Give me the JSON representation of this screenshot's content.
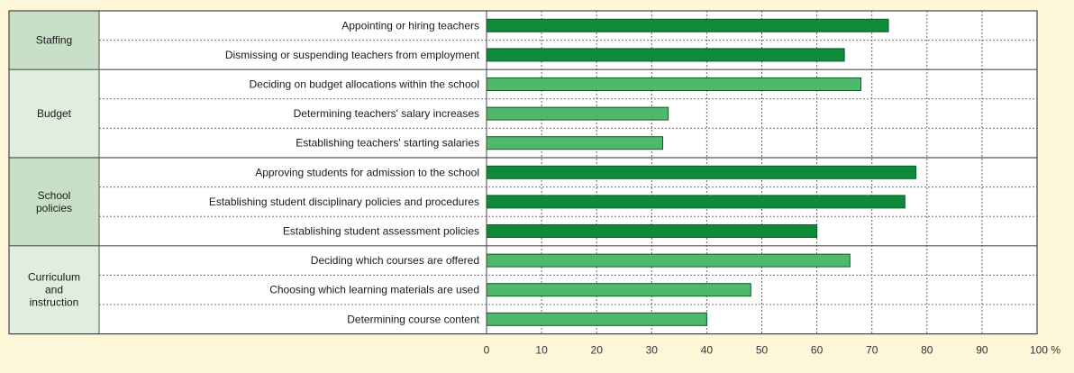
{
  "chart_data": {
    "type": "bar",
    "orientation": "horizontal",
    "unit": "%",
    "xlim": [
      0,
      100
    ],
    "x_ticks": [
      "0",
      "10",
      "20",
      "30",
      "40",
      "50",
      "60",
      "70",
      "80",
      "90",
      "100 %"
    ],
    "grid": true,
    "groups": [
      {
        "label": "Staffing",
        "color": "#c7e0c7"
      },
      {
        "label": "Budget",
        "color": "#dfeedf"
      },
      {
        "label": "School policies",
        "color": "#c7e0c7"
      },
      {
        "label": "Curriculum and instruction",
        "color": "#dfeedf"
      }
    ],
    "items": [
      {
        "group": 0,
        "label": "Appointing or hiring teachers",
        "value": 73,
        "shade": "dark"
      },
      {
        "group": 0,
        "label": "Dismissing or suspending teachers from employment",
        "value": 65,
        "shade": "dark"
      },
      {
        "group": 1,
        "label": "Deciding on budget allocations within the school",
        "value": 68,
        "shade": "light"
      },
      {
        "group": 1,
        "label": "Determining teachers' salary increases",
        "value": 33,
        "shade": "light"
      },
      {
        "group": 1,
        "label": "Establishing teachers' starting salaries",
        "value": 32,
        "shade": "light"
      },
      {
        "group": 2,
        "label": "Approving students for admission to the school",
        "value": 78,
        "shade": "dark"
      },
      {
        "group": 2,
        "label": "Establishing student disciplinary policies and procedures",
        "value": 76,
        "shade": "dark"
      },
      {
        "group": 2,
        "label": "Establishing student assessment policies",
        "value": 60,
        "shade": "dark"
      },
      {
        "group": 3,
        "label": "Deciding which courses are offered",
        "value": 66,
        "shade": "light"
      },
      {
        "group": 3,
        "label": "Choosing which learning materials are used",
        "value": 48,
        "shade": "light"
      },
      {
        "group": 3,
        "label": "Determining course content",
        "value": 40,
        "shade": "light"
      }
    ],
    "colors": {
      "dark": "#0e8a3a",
      "light": "#4fb86a",
      "edge": "#0b5e2a"
    }
  }
}
